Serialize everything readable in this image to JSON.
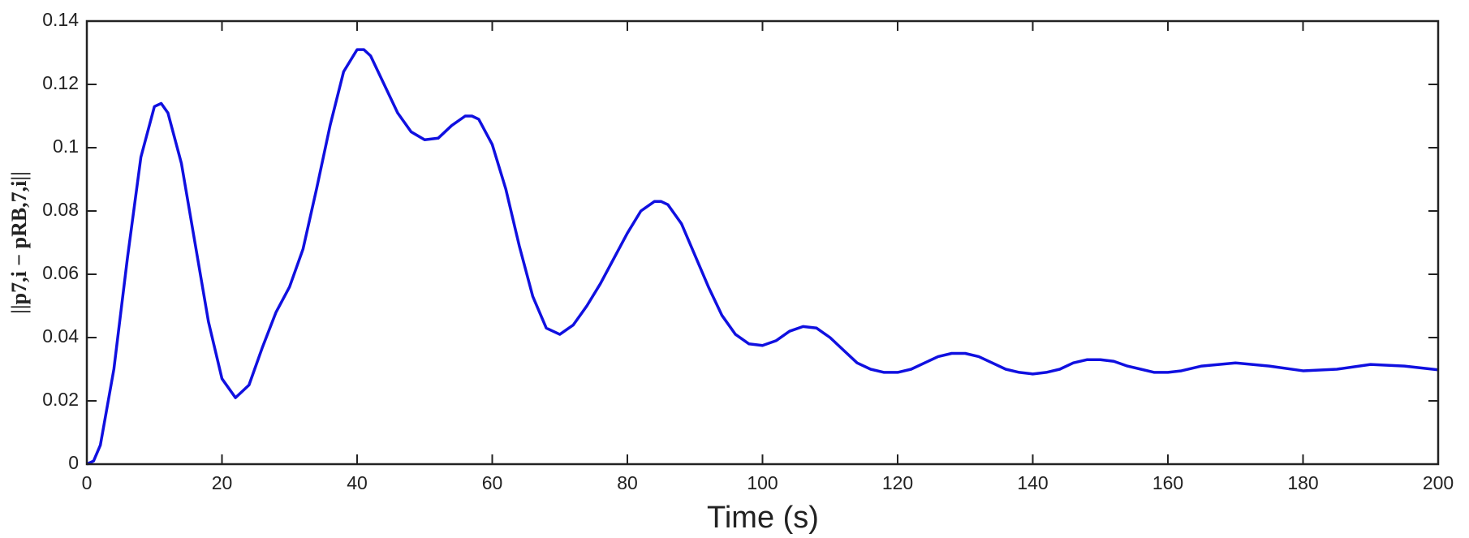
{
  "chart_data": {
    "type": "line",
    "xlabel": "Time (s)",
    "ylabel": "||p7,i − pRB,7,i||",
    "xlim": [
      0,
      200
    ],
    "ylim": [
      0,
      0.14
    ],
    "xticks": [
      0,
      20,
      40,
      60,
      80,
      100,
      120,
      140,
      160,
      180,
      200
    ],
    "yticks": [
      0,
      0.02,
      0.04,
      0.06,
      0.08,
      0.1,
      0.12,
      0.14
    ],
    "grid": false,
    "series": [
      {
        "color": "#1010e0",
        "x": [
          0,
          1,
          2,
          4,
          6,
          8,
          10,
          11,
          12,
          14,
          16,
          18,
          20,
          22,
          24,
          26,
          28,
          30,
          32,
          34,
          36,
          38,
          40,
          41,
          42,
          44,
          46,
          48,
          50,
          52,
          54,
          56,
          57,
          58,
          60,
          62,
          64,
          66,
          68,
          70,
          72,
          74,
          76,
          78,
          80,
          82,
          84,
          85,
          86,
          88,
          90,
          92,
          94,
          96,
          98,
          100,
          102,
          104,
          106,
          108,
          110,
          112,
          114,
          116,
          118,
          120,
          122,
          124,
          126,
          128,
          130,
          132,
          134,
          136,
          138,
          140,
          142,
          144,
          146,
          148,
          150,
          152,
          154,
          156,
          158,
          160,
          162,
          165,
          170,
          175,
          180,
          185,
          190,
          195,
          200
        ],
        "values": [
          0,
          0.001,
          0.006,
          0.03,
          0.065,
          0.097,
          0.113,
          0.114,
          0.111,
          0.095,
          0.07,
          0.045,
          0.027,
          0.021,
          0.025,
          0.037,
          0.048,
          0.056,
          0.068,
          0.087,
          0.107,
          0.124,
          0.131,
          0.131,
          0.129,
          0.12,
          0.111,
          0.105,
          0.1025,
          0.103,
          0.107,
          0.11,
          0.11,
          0.109,
          0.101,
          0.087,
          0.069,
          0.053,
          0.043,
          0.041,
          0.044,
          0.05,
          0.057,
          0.065,
          0.073,
          0.08,
          0.083,
          0.083,
          0.082,
          0.076,
          0.066,
          0.056,
          0.047,
          0.041,
          0.038,
          0.0375,
          0.039,
          0.042,
          0.0435,
          0.043,
          0.04,
          0.036,
          0.032,
          0.03,
          0.029,
          0.029,
          0.03,
          0.032,
          0.034,
          0.035,
          0.035,
          0.034,
          0.032,
          0.03,
          0.029,
          0.0285,
          0.029,
          0.03,
          0.032,
          0.033,
          0.033,
          0.0325,
          0.031,
          0.03,
          0.029,
          0.029,
          0.0295,
          0.031,
          0.032,
          0.031,
          0.0295,
          0.03,
          0.0315,
          0.031,
          0.0298
        ]
      }
    ]
  }
}
